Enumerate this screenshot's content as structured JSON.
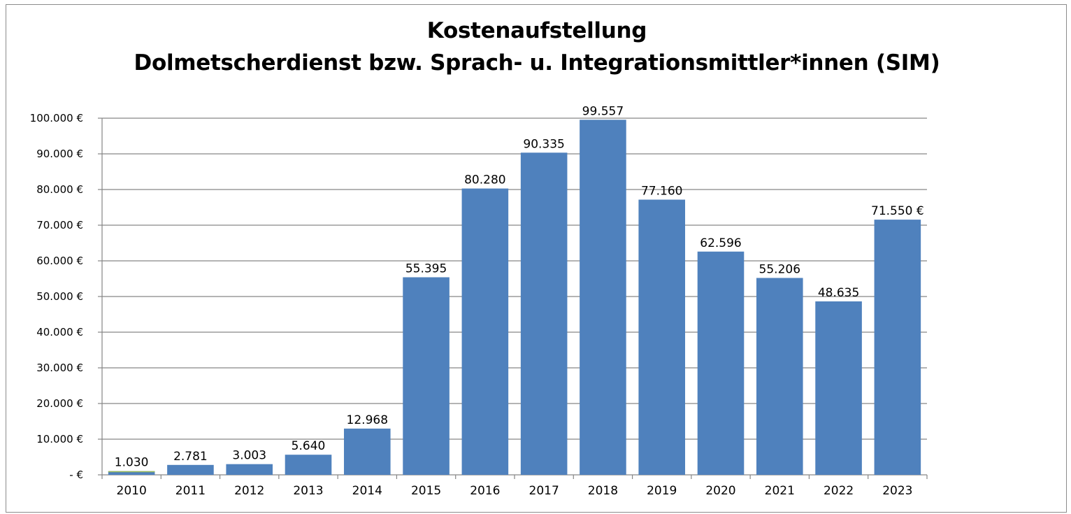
{
  "chart_data": {
    "type": "bar",
    "title": "Kostenaufstellung\nDolmetscherdienst bzw. Sprach- u. Integrationsmittler*innen (SIM)",
    "xlabel": "",
    "ylabel": "",
    "categories": [
      "2010",
      "2011",
      "2012",
      "2013",
      "2014",
      "2015",
      "2016",
      "2017",
      "2018",
      "2019",
      "2020",
      "2021",
      "2022",
      "2023"
    ],
    "values": [
      1030,
      2781,
      3003,
      5640,
      12968,
      55395,
      80280,
      90335,
      99557,
      77160,
      62596,
      55206,
      48635,
      71550
    ],
    "data_labels": [
      "1.030",
      "2.781",
      "3.003",
      "5.640",
      "12.968",
      "55.395",
      "80.280",
      "90.335",
      "99.557",
      "77.160",
      "62.596",
      "55.206",
      "48.635",
      "71.550 €"
    ],
    "ylim": [
      0,
      100000
    ],
    "y_ticks": [
      0,
      10000,
      20000,
      30000,
      40000,
      50000,
      60000,
      70000,
      80000,
      90000,
      100000
    ],
    "y_tick_labels": [
      "- €",
      "10.000 €",
      "20.000 €",
      "30.000 €",
      "40.000 €",
      "50.000 €",
      "60.000 €",
      "70.000 €",
      "80.000 €",
      "90.000 €",
      "100.000 €"
    ],
    "grid": true,
    "legend": "none",
    "bar_color": "#4f81bd",
    "first_bar_accent": "#9bbb59"
  }
}
